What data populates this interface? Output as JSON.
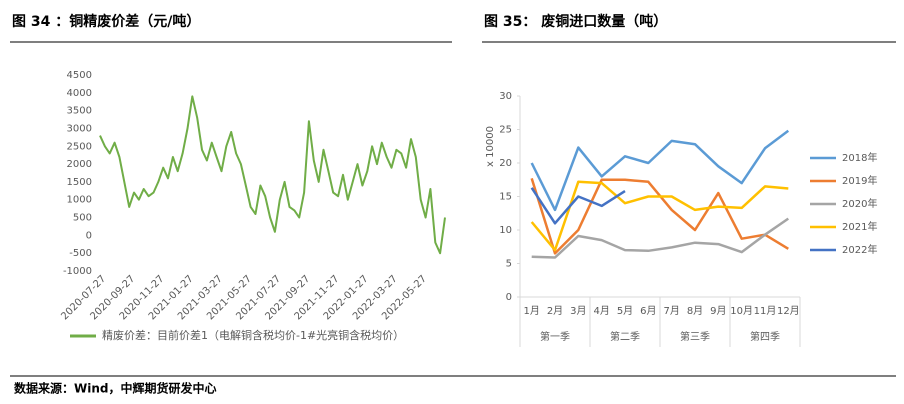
{
  "chart_data": [
    {
      "type": "line",
      "title": "图 34 ：铜精废价差（元/吨）",
      "categories": [
        "2020-07-27",
        null,
        null,
        null,
        null,
        null,
        "2020-09-27",
        null,
        null,
        null,
        null,
        null,
        "2020-11-27",
        null,
        null,
        null,
        null,
        null,
        "2021-01-27",
        null,
        null,
        null,
        null,
        null,
        "2021-03-27",
        null,
        null,
        null,
        null,
        null,
        "2021-05-27",
        null,
        null,
        null,
        null,
        null,
        "2021-07-27",
        null,
        null,
        null,
        null,
        null,
        "2021-09-27",
        null,
        null,
        null,
        null,
        null,
        "2021-11-27",
        null,
        null,
        null,
        null,
        null,
        "2022-01-27",
        null,
        null,
        null,
        null,
        null,
        "2022-03-27",
        null,
        null,
        null,
        null,
        null,
        "2022-05-27",
        null,
        null,
        null,
        null,
        null
      ],
      "series": [
        {
          "name": "精废价差：目前价差1（电解铜含税均价-1#光亮铜含税均价）",
          "color": "#70ad47",
          "values": [
            2800,
            2500,
            2300,
            2600,
            2200,
            1500,
            800,
            1200,
            1000,
            1300,
            1100,
            1200,
            1500,
            1900,
            1600,
            2200,
            1800,
            2300,
            3000,
            3900,
            3300,
            2400,
            2100,
            2600,
            2200,
            1800,
            2500,
            2900,
            2300,
            2000,
            1400,
            800,
            600,
            1400,
            1100,
            500,
            100,
            1000,
            1500,
            800,
            700,
            500,
            1200,
            3200,
            2100,
            1500,
            2400,
            1800,
            1200,
            1100,
            1700,
            1000,
            1500,
            2000,
            1400,
            1800,
            2500,
            2000,
            2600,
            2200,
            1900,
            2400,
            2300,
            1900,
            2700,
            2200,
            1000,
            500,
            1300,
            -200,
            -500,
            500
          ]
        }
      ],
      "ylim": [
        -1000,
        4500
      ],
      "yticks": [
        -1000,
        -500,
        0,
        500,
        1000,
        1500,
        2000,
        2500,
        3000,
        3500,
        4000,
        4500
      ],
      "legend": "bottom"
    },
    {
      "type": "line",
      "title": "图 35： 废铜进口数量（吨）",
      "y_label": "x 10000",
      "categories": [
        "1月",
        "2月",
        "3月",
        "4月",
        "5月",
        "6月",
        "7月",
        "8月",
        "9月",
        "10月",
        "11月",
        "12月"
      ],
      "groups": [
        "第一季",
        "第二季",
        "第三季",
        "第四季"
      ],
      "series": [
        {
          "name": "2018年",
          "color": "#5b9bd5",
          "values": [
            20,
            13,
            22.3,
            18,
            21,
            20,
            23.3,
            22.8,
            19.5,
            17,
            22.2,
            24.8
          ]
        },
        {
          "name": "2019年",
          "color": "#ed7d31",
          "values": [
            17.7,
            6.5,
            10,
            17.5,
            17.5,
            17.2,
            13,
            10,
            15.5,
            8.7,
            9.3,
            7.2
          ]
        },
        {
          "name": "2020年",
          "color": "#a5a5a5",
          "values": [
            6,
            5.9,
            9.1,
            8.5,
            7,
            6.9,
            7.4,
            8.1,
            7.9,
            6.7,
            9.3,
            11.7
          ]
        },
        {
          "name": "2021年",
          "color": "#ffc000",
          "values": [
            11.2,
            7,
            17.2,
            17,
            14,
            15,
            15,
            13,
            13.5,
            13.3,
            16.5,
            16.2
          ]
        },
        {
          "name": "2022年",
          "color": "#4472c4",
          "values": [
            16.3,
            11,
            15,
            13.6,
            15.8,
            null,
            null,
            null,
            null,
            null,
            null,
            null
          ]
        }
      ],
      "ylim": [
        0,
        30
      ],
      "yticks": [
        0,
        5,
        10,
        15,
        20,
        25,
        30
      ],
      "legend": "right"
    }
  ],
  "source": "数据来源：Wind，中辉期货研发中心"
}
